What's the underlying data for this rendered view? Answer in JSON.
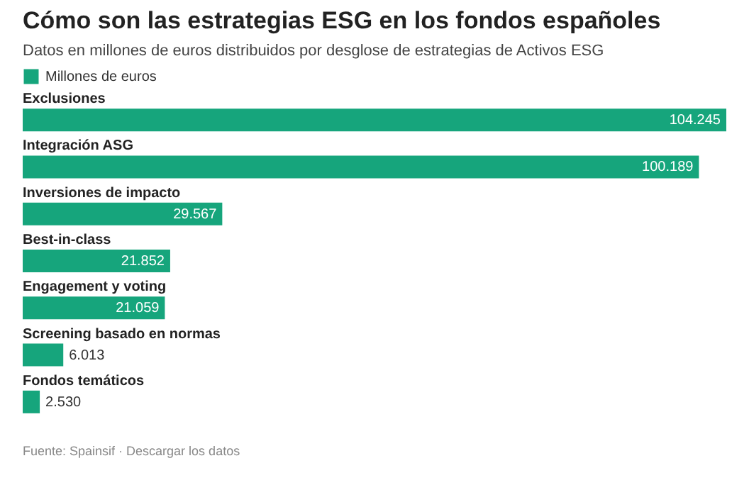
{
  "chart_data": {
    "type": "bar",
    "orientation": "horizontal",
    "title": "Cómo son las estrategias ESG en los fondos españoles",
    "subtitle": "Datos en millones de euros distribuidos por desglose de estrategias de Activos ESG",
    "categories": [
      "Exclusiones",
      "Integración ASG",
      "Inversiones de impacto",
      "Best-in-class",
      "Engagement y voting",
      "Screening basado en normas",
      "Fondos temáticos"
    ],
    "series": [
      {
        "name": "Millones de euros",
        "color": "#16a57c",
        "values": [
          104245,
          100189,
          29567,
          21852,
          21059,
          6013,
          2530
        ],
        "value_labels": [
          "104.245",
          "100.189",
          "29.567",
          "21.852",
          "21.059",
          "6.013",
          "2.530"
        ]
      }
    ],
    "legend": "top left",
    "annotations": [
      "Fuente: Spainsif · Descargar los datos"
    ]
  }
}
